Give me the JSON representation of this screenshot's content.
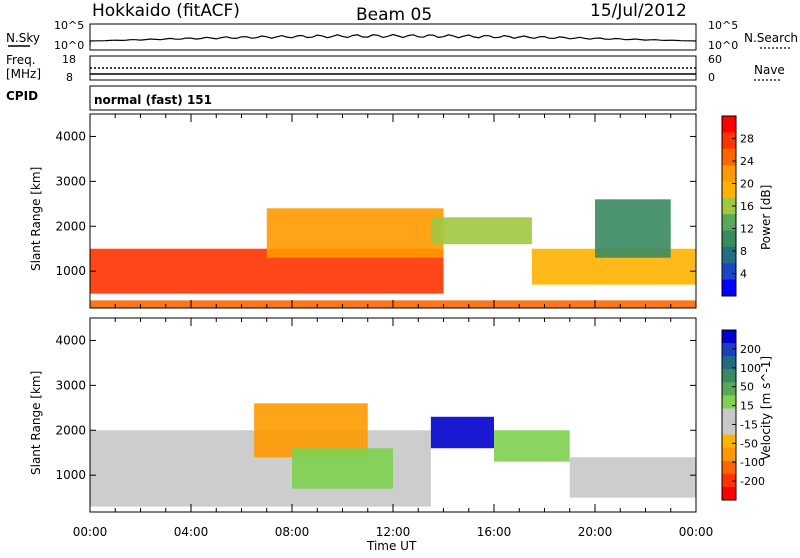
{
  "header": {
    "radar": "Hokkaido (fitACF)",
    "beam": "Beam 05",
    "date": "15/Jul/2012"
  },
  "noise_panel": {
    "left_label": "N.Sky",
    "right_label": "N.Search",
    "left_ticks": [
      "10^5",
      "10^0"
    ],
    "right_ticks": [
      "10^5",
      "10^0"
    ]
  },
  "freq_panel": {
    "left_label_line1": "Freq.",
    "left_label_line2": "[MHz]",
    "right_label": "Nave",
    "left_ticks": [
      "18",
      "8"
    ],
    "right_ticks": [
      "60",
      "0"
    ]
  },
  "cpid_panel": {
    "label": "CPID",
    "mode_text": "normal (fast) 151"
  },
  "xaxis": {
    "label": "Time UT",
    "ticks": [
      "00:00",
      "04:00",
      "08:00",
      "12:00",
      "16:00",
      "20:00",
      "00:00"
    ]
  },
  "power_panel": {
    "ylabel": "Slant Range [km]",
    "yticks": [
      "4000",
      "3000",
      "2000",
      "1000"
    ],
    "colorbar_label": "Power [dB]",
    "colorbar_ticks": [
      "28",
      "24",
      "20",
      "16",
      "12",
      "8",
      "4"
    ],
    "colorbar_colors": [
      "#ff0000",
      "#ff3300",
      "#ff6600",
      "#ff9900",
      "#ffb300",
      "#a0c840",
      "#5aa85a",
      "#3a8a60",
      "#1f6e82",
      "#1a45c8",
      "#0000ff"
    ]
  },
  "velocity_panel": {
    "ylabel": "Slant Range [km]",
    "yticks": [
      "4000",
      "3000",
      "2000",
      "1000"
    ],
    "colorbar_label": "Velocity [m s^-1]",
    "colorbar_ticks": [
      "200",
      "100",
      "50",
      "15",
      "-15",
      "-50",
      "-100",
      "-200"
    ],
    "colorbar_colors": [
      "#0000cc",
      "#1a3fc0",
      "#1f6e82",
      "#3a8a60",
      "#5aa85a",
      "#7ed050",
      "#c8c8c8",
      "#c8c8c8",
      "#ffb300",
      "#ff9900",
      "#ff6600",
      "#ff3300",
      "#ff0000"
    ]
  },
  "chart_data": {
    "type": "heatmap",
    "x_range_hours": [
      0,
      24
    ],
    "y_range_km": [
      180,
      4500
    ],
    "regions_power": [
      {
        "t0": 0.0,
        "t1": 14.0,
        "r0": 500,
        "r1": 1500,
        "value": 26
      },
      {
        "t0": 7.0,
        "t1": 14.0,
        "r0": 1300,
        "r1": 2400,
        "value": 22
      },
      {
        "t0": 13.5,
        "t1": 17.5,
        "r0": 1600,
        "r1": 2200,
        "value": 16
      },
      {
        "t0": 17.5,
        "t1": 24.0,
        "r0": 700,
        "r1": 1500,
        "value": 18
      },
      {
        "t0": 20.0,
        "t1": 23.0,
        "r0": 1300,
        "r1": 2600,
        "value": 8
      },
      {
        "t0": 0.0,
        "t1": 24.0,
        "r0": 180,
        "r1": 350,
        "value": 24
      }
    ],
    "regions_velocity": [
      {
        "t0": 0.0,
        "t1": 13.5,
        "r0": 300,
        "r1": 2000,
        "value": 0
      },
      {
        "t0": 6.5,
        "t1": 11.0,
        "r0": 1400,
        "r1": 2600,
        "value": -50
      },
      {
        "t0": 8.0,
        "t1": 12.0,
        "r0": 700,
        "r1": 1600,
        "value": 50
      },
      {
        "t0": 13.5,
        "t1": 16.0,
        "r0": 1600,
        "r1": 2300,
        "value": 200
      },
      {
        "t0": 16.0,
        "t1": 19.0,
        "r0": 1300,
        "r1": 2000,
        "value": 50
      },
      {
        "t0": 19.0,
        "t1": 24.0,
        "r0": 500,
        "r1": 1400,
        "value": 0
      }
    ]
  }
}
